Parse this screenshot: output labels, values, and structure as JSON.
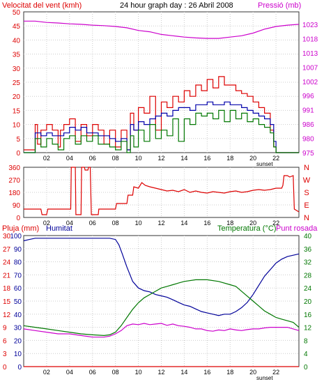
{
  "chart_data": [
    {
      "type": "line",
      "title": "24 hour graph day : 26 Abril 2008",
      "left_axis_label": "Velocitat del vent (kmh)",
      "right_axis_label": "Pressió (mb)",
      "x_ticks": [
        "02",
        "04",
        "06",
        "08",
        "10",
        "12",
        "14",
        "16",
        "18",
        "20",
        "22"
      ],
      "x_range": [
        0,
        24
      ],
      "y_left_range": [
        0,
        50
      ],
      "y_left_ticks": [
        "0",
        "5",
        "10",
        "15",
        "20",
        "25",
        "30",
        "35",
        "40",
        "45",
        "50"
      ],
      "y_right_range": [
        975,
        1028
      ],
      "y_right_ticks": [
        "975",
        "980",
        "986",
        "991",
        "996",
        "1002",
        "1007",
        "1013",
        "1018",
        "1023"
      ],
      "sunset_label": "sunset",
      "series": [
        {
          "color": "#dd0000",
          "axis": "left",
          "x": [
            0,
            0.5,
            1.0,
            1.2,
            1.5,
            2.0,
            2.5,
            3.0,
            3.2,
            3.5,
            4.0,
            4.5,
            5.0,
            5.5,
            6.0,
            6.5,
            7.0,
            7.5,
            8.0,
            8.5,
            9.0,
            9.3,
            9.6,
            10.0,
            10.5,
            11.0,
            11.5,
            12.0,
            12.5,
            13.0,
            13.5,
            14.0,
            14.5,
            15.0,
            15.5,
            16.0,
            16.5,
            17.0,
            17.5,
            18.0,
            18.5,
            19.0,
            19.5,
            20.0,
            20.5,
            21.0,
            21.5,
            21.8,
            22.0,
            22.5,
            23.0,
            23.5,
            24.0
          ],
          "y": [
            1,
            1,
            10,
            3,
            8,
            10,
            8,
            2,
            8,
            10,
            12,
            4,
            10,
            6,
            10,
            8,
            3,
            8,
            2,
            8,
            1,
            14,
            8,
            16,
            14,
            20,
            8,
            18,
            16,
            20,
            18,
            22,
            20,
            24,
            22,
            26,
            23,
            27,
            24,
            24,
            22,
            21,
            20,
            18,
            16,
            14,
            8,
            2,
            0,
            0,
            0,
            0,
            0
          ]
        },
        {
          "color": "#0000aa",
          "axis": "left",
          "x": [
            0,
            0.5,
            1.0,
            1.5,
            2.0,
            2.5,
            3.0,
            3.5,
            4.0,
            4.5,
            5.0,
            5.5,
            6.0,
            6.5,
            7.0,
            7.5,
            8.0,
            8.5,
            9.0,
            9.3,
            9.6,
            10.0,
            10.5,
            11.0,
            11.5,
            12.0,
            12.5,
            13.0,
            13.5,
            14.0,
            14.5,
            15.0,
            15.5,
            16.0,
            16.5,
            17.0,
            17.5,
            18.0,
            18.5,
            19.0,
            19.5,
            20.0,
            20.5,
            21.0,
            21.5,
            21.8,
            22.0,
            22.5,
            23.0,
            23.5,
            24.0
          ],
          "y": [
            0,
            0,
            7,
            6,
            7,
            6,
            6,
            7,
            9,
            8,
            9,
            7,
            7,
            6,
            6,
            5,
            4,
            5,
            1,
            10,
            8,
            11,
            10,
            12,
            13,
            14,
            13,
            15,
            16,
            16,
            15,
            17,
            17,
            18,
            17,
            17,
            18,
            17,
            17,
            16,
            15,
            14,
            13,
            12,
            10,
            4,
            0,
            0,
            0,
            0,
            0
          ]
        },
        {
          "color": "#007700",
          "axis": "left",
          "x": [
            0,
            0.5,
            1.0,
            1.5,
            2.0,
            2.5,
            3.0,
            3.5,
            4.0,
            4.5,
            5.0,
            5.5,
            6.0,
            6.5,
            7.0,
            7.5,
            8.0,
            8.5,
            9.0,
            9.3,
            9.6,
            10.0,
            10.5,
            11.0,
            11.5,
            12.0,
            12.5,
            13.0,
            13.5,
            14.0,
            14.5,
            15.0,
            15.5,
            16.0,
            16.5,
            17.0,
            17.5,
            18.0,
            18.5,
            19.0,
            19.5,
            20.0,
            20.5,
            21.0,
            21.5,
            21.8,
            22.0,
            22.5,
            23.0,
            23.5,
            24.0
          ],
          "y": [
            0,
            0,
            5,
            2,
            5,
            3,
            1,
            5,
            6,
            3,
            6,
            4,
            6,
            3,
            3,
            2,
            1,
            4,
            0,
            6,
            2,
            8,
            4,
            10,
            5,
            8,
            6,
            12,
            4,
            12,
            10,
            14,
            13,
            14,
            12,
            15,
            11,
            15,
            12,
            14,
            11,
            12,
            10,
            9,
            7,
            2,
            0,
            0,
            0,
            0,
            0
          ]
        },
        {
          "color": "#cc00cc",
          "axis": "right",
          "x": [
            0,
            1,
            2,
            3,
            4,
            5,
            6,
            7,
            8,
            9,
            10,
            11,
            12,
            13,
            14,
            15,
            16,
            17,
            18,
            19,
            20,
            21,
            22,
            23,
            24
          ],
          "y": [
            1024.5,
            1024.5,
            1024,
            1023.8,
            1023.5,
            1023.3,
            1023,
            1022.8,
            1022.5,
            1022,
            1021,
            1020.5,
            1019.5,
            1019,
            1018.5,
            1018.2,
            1018,
            1018,
            1018.5,
            1019,
            1020,
            1021.5,
            1022.5,
            1023,
            1023.3
          ]
        }
      ]
    },
    {
      "type": "line",
      "y_left_range": [
        0,
        360
      ],
      "y_left_ticks": [
        "0",
        "90",
        "180",
        "270",
        "360"
      ],
      "y_right_labels": [
        "N",
        "W",
        "S",
        "E",
        "N"
      ],
      "x_ticks": [
        "02",
        "04",
        "06",
        "08",
        "10",
        "12",
        "14",
        "16",
        "18",
        "20",
        "22"
      ],
      "x_range": [
        0,
        24
      ],
      "series": [
        {
          "color": "#dd0000",
          "x": [
            0,
            1.5,
            1.6,
            2.0,
            2.1,
            2.3,
            2.5,
            4.1,
            4.15,
            4.5,
            4.55,
            5.0,
            5.05,
            5.3,
            5.35,
            5.6,
            5.65,
            5.8,
            5.9,
            6.0,
            6.5,
            6.55,
            7.0,
            7.05,
            8.0,
            8.1,
            9.0,
            9.1,
            9.5,
            9.6,
            10.0,
            10.3,
            10.6,
            11.0,
            11.5,
            12.0,
            12.5,
            13.0,
            13.5,
            14.0,
            14.5,
            15.0,
            15.5,
            16.0,
            16.5,
            17.0,
            17.5,
            18.0,
            18.5,
            19.0,
            19.5,
            20.0,
            20.5,
            21.0,
            21.5,
            22.0,
            22.5,
            22.6,
            22.7,
            23.0,
            23.2,
            23.5,
            23.6,
            24.0
          ],
          "y": [
            60,
            60,
            20,
            20,
            60,
            60,
            60,
            60,
            360,
            360,
            20,
            20,
            360,
            360,
            340,
            340,
            360,
            360,
            20,
            20,
            20,
            60,
            60,
            60,
            60,
            100,
            100,
            160,
            160,
            220,
            210,
            250,
            230,
            220,
            210,
            200,
            190,
            195,
            185,
            200,
            180,
            190,
            180,
            175,
            185,
            180,
            175,
            185,
            190,
            180,
            185,
            195,
            200,
            195,
            200,
            210,
            210,
            230,
            300,
            300,
            290,
            300,
            60,
            40
          ]
        }
      ]
    },
    {
      "type": "line",
      "left_axis_label": "Pluja (mm)",
      "left_axis_label_2": "Humitat",
      "right_axis_label": "Temperatura (°C)",
      "right_axis_label_2": "Punt rosada",
      "x_ticks": [
        "02",
        "04",
        "06",
        "08",
        "10",
        "12",
        "14",
        "16",
        "18",
        "20",
        "22"
      ],
      "x_range": [
        0,
        24
      ],
      "y_left_ticks_rain": [
        "0",
        "3",
        "6",
        "9",
        "12",
        "15",
        "18",
        "21",
        "24",
        "27",
        "30"
      ],
      "y_left_ticks_humidity": [
        "0",
        "10",
        "20",
        "30",
        "40",
        "50",
        "60",
        "70",
        "80",
        "90",
        "100"
      ],
      "y_right_ticks": [
        "0",
        "4",
        "8",
        "12",
        "16",
        "20",
        "24",
        "28",
        "32",
        "36",
        "40"
      ],
      "y_right_range": [
        0,
        40
      ],
      "sunset_label": "sunset",
      "series": [
        {
          "color": "#dd0000",
          "axis": "rain",
          "x": [
            0,
            24
          ],
          "y": [
            0,
            0
          ]
        },
        {
          "color": "#000099",
          "axis": "humidity",
          "x": [
            0,
            0.5,
            1,
            2,
            3,
            4,
            5,
            6,
            7,
            7.5,
            8,
            8.3,
            8.6,
            9,
            9.5,
            10,
            10.5,
            11,
            11.5,
            12,
            12.5,
            13,
            13.5,
            14,
            14.5,
            15,
            15.5,
            16,
            16.5,
            17,
            17.5,
            18,
            18.5,
            19,
            19.5,
            20,
            20.5,
            21,
            21.5,
            22,
            22.5,
            23,
            23.5,
            24
          ],
          "y": [
            96,
            97,
            98,
            98,
            98,
            98,
            98,
            98,
            98,
            98,
            97,
            93,
            86,
            76,
            65,
            60,
            58,
            57,
            55,
            54,
            53,
            51,
            49,
            47,
            46,
            44,
            42,
            41,
            40,
            39,
            40,
            40,
            42,
            45,
            49,
            55,
            62,
            69,
            74,
            79,
            82,
            84,
            85,
            86
          ]
        },
        {
          "color": "#007700",
          "axis": "temperature",
          "x": [
            0,
            1,
            2,
            3,
            4,
            5,
            6,
            7,
            7.5,
            8,
            8.5,
            9,
            9.5,
            10,
            10.5,
            11,
            11.5,
            12,
            12.5,
            13,
            13.5,
            14,
            15,
            16,
            17,
            18,
            18.5,
            19,
            19.5,
            20,
            20.5,
            21,
            21.5,
            22,
            22.5,
            23,
            23.5,
            24
          ],
          "y": [
            12.5,
            12,
            11.5,
            11,
            10.5,
            10,
            9.7,
            9.5,
            9.7,
            10.5,
            12.5,
            15,
            17.5,
            19.5,
            21,
            22,
            23,
            24,
            24.5,
            25,
            25.5,
            26,
            26.5,
            26.5,
            26,
            25,
            24.5,
            23,
            21.5,
            20,
            18.5,
            17,
            16,
            15,
            14.5,
            14,
            13.5,
            12
          ]
        },
        {
          "color": "#cc00cc",
          "axis": "temperature",
          "x": [
            0,
            1,
            2,
            3,
            4,
            5,
            6,
            7,
            7.5,
            8,
            8.5,
            9,
            9.5,
            10,
            10.5,
            11,
            11.5,
            12,
            12.5,
            13,
            13.5,
            14,
            14.5,
            15,
            15.5,
            16,
            16.5,
            17,
            17.5,
            18,
            18.5,
            19,
            19.5,
            20,
            20.5,
            21,
            21.5,
            22,
            22.5,
            23,
            23.5,
            24
          ],
          "y": [
            11.5,
            11,
            10.5,
            10,
            10,
            9.5,
            9,
            9,
            9.3,
            10,
            11,
            12.5,
            13,
            12.8,
            13.2,
            12.8,
            13,
            13.2,
            12.6,
            13,
            12.5,
            12.3,
            12,
            11.5,
            11.5,
            11,
            10.8,
            11.2,
            11,
            11.5,
            11.2,
            11,
            11.3,
            11.5,
            11.5,
            11.8,
            12,
            12,
            12,
            12,
            11.5,
            11
          ]
        }
      ]
    }
  ]
}
